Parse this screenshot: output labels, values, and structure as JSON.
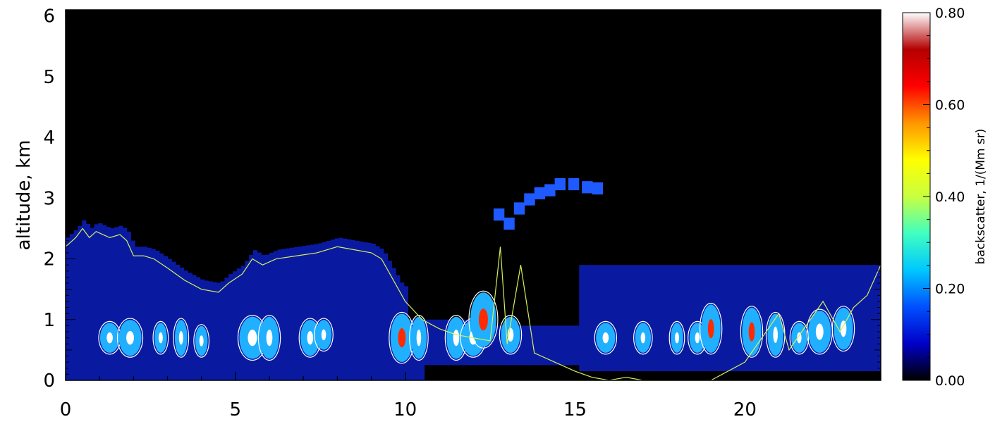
{
  "chart_data": {
    "type": "heatmap",
    "title": "",
    "xlabel": "",
    "ylabel": "altitude, km",
    "xlim": [
      0,
      24
    ],
    "ylim": [
      0,
      6.1
    ],
    "x_ticks": [
      "0",
      "5",
      "10",
      "15",
      "20"
    ],
    "y_ticks": [
      "0",
      "1",
      "2",
      "3",
      "4",
      "5",
      "6"
    ],
    "background_color": "#000000",
    "colorbar": {
      "label": "backscatter, 1/(Mm sr)",
      "range": [
        0,
        0.8
      ],
      "ticks": [
        "0.00",
        "0.20",
        "0.40",
        "0.60",
        "0.80"
      ],
      "colormap": [
        "#000000",
        "#0000c8",
        "#0050ff",
        "#00c8ff",
        "#40ffc0",
        "#c8ff40",
        "#ffff00",
        "#ff9600",
        "#ff0000",
        "#b40000",
        "#ffffff"
      ]
    },
    "series": [
      {
        "name": "",
        "kind": "line",
        "color": "#d4f05a",
        "x": [
          0,
          0.3,
          0.5,
          0.7,
          0.9,
          1.1,
          1.3,
          1.6,
          1.8,
          2.0,
          2.3,
          2.6,
          3.0,
          3.5,
          4.0,
          4.5,
          4.8,
          5.2,
          5.5,
          5.8,
          6.2,
          6.8,
          7.4,
          8.0,
          8.5,
          9.0,
          9.3,
          9.6,
          10.0,
          10.5,
          11.0,
          11.5,
          12.0,
          12.5,
          12.8,
          13.0,
          13.4,
          13.8,
          14.2,
          14.6,
          15.0,
          15.5,
          16.0,
          16.5,
          17.0,
          17.5,
          18.0,
          19.0,
          20.0,
          20.5,
          21.0,
          21.3,
          21.8,
          22.3,
          22.8,
          23.2,
          23.6,
          24.0
        ],
        "y": [
          2.2,
          2.35,
          2.5,
          2.35,
          2.45,
          2.4,
          2.35,
          2.4,
          2.3,
          2.05,
          2.05,
          2.0,
          1.85,
          1.65,
          1.5,
          1.45,
          1.6,
          1.75,
          2.0,
          1.9,
          2.0,
          2.05,
          2.1,
          2.2,
          2.15,
          2.1,
          2.0,
          1.7,
          1.3,
          1.0,
          0.85,
          0.75,
          0.7,
          0.65,
          2.2,
          0.6,
          1.9,
          0.45,
          0.35,
          0.25,
          0.15,
          0.05,
          0.0,
          0.05,
          0.0,
          0.0,
          0.0,
          0.0,
          0.3,
          0.7,
          1.1,
          0.5,
          0.9,
          1.3,
          0.8,
          1.2,
          1.4,
          1.9
        ]
      }
    ]
  }
}
